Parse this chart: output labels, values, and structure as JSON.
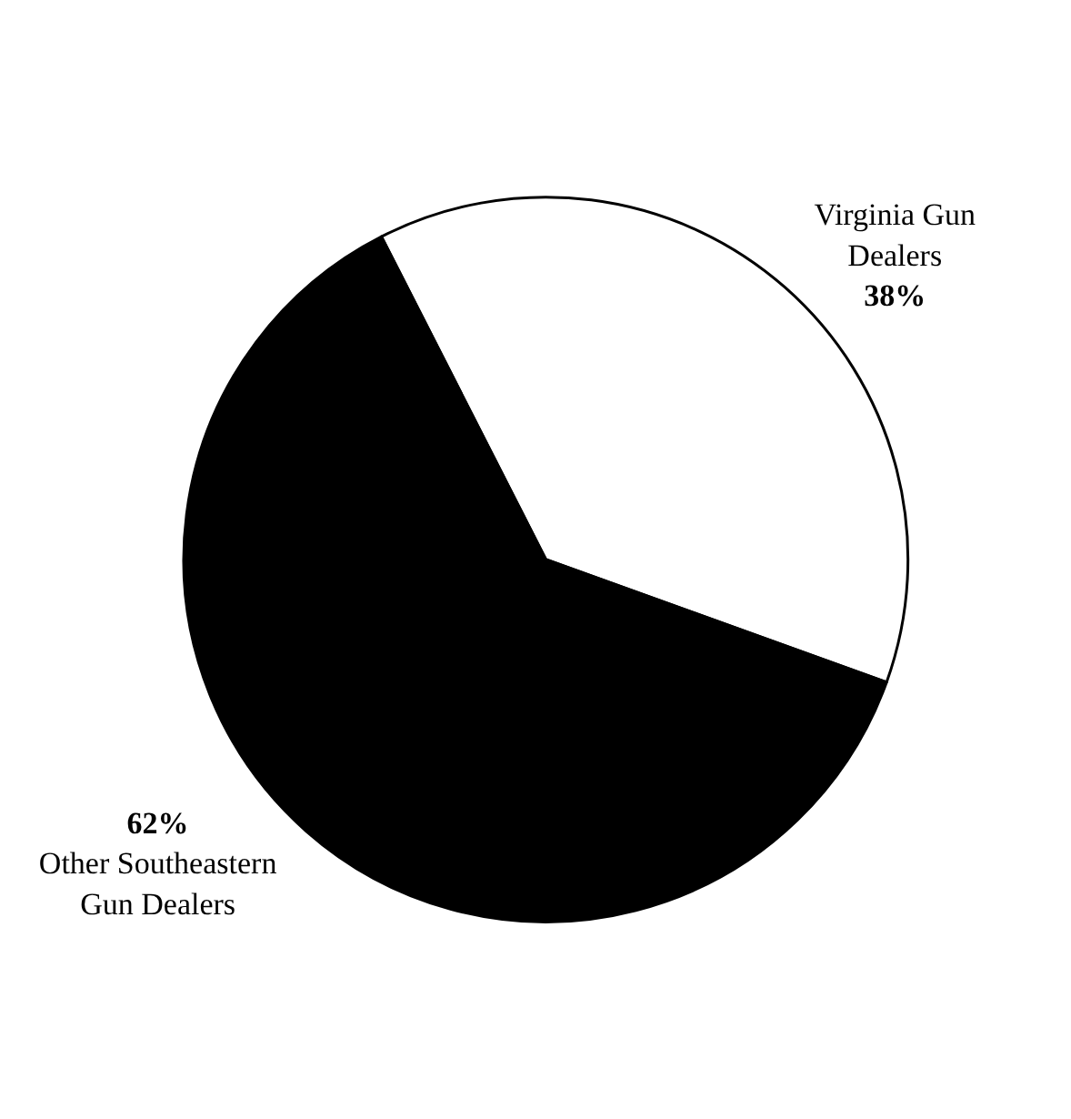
{
  "chart_data": {
    "type": "pie",
    "categories": [
      "Virginia Gun Dealers",
      "Other Southeastern Gun Dealers"
    ],
    "values": [
      38,
      62
    ],
    "colors": [
      "#ffffff",
      "#000000"
    ],
    "value_labels": [
      "38%",
      "62%"
    ],
    "legend": false
  }
}
